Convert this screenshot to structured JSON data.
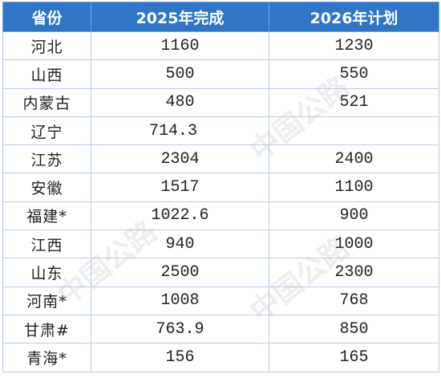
{
  "table": {
    "headers": [
      "省份",
      "2025年完成",
      "2026年计划"
    ],
    "rows": [
      {
        "province": "河北",
        "done2025": "1160",
        "plan2026": "1230"
      },
      {
        "province": "山西",
        "done2025": "500",
        "plan2026": "550"
      },
      {
        "province": "内蒙古",
        "done2025": "480",
        "plan2026": "521"
      },
      {
        "province": "辽宁",
        "done2025": "714.3",
        "plan2026": ""
      },
      {
        "province": "江苏",
        "done2025": "2304",
        "plan2026": "2400"
      },
      {
        "province": "安徽",
        "done2025": "1517",
        "plan2026": "1100"
      },
      {
        "province": "福建*",
        "done2025": "1022.6",
        "plan2026": "900"
      },
      {
        "province": "江西",
        "done2025": "940",
        "plan2026": "1000"
      },
      {
        "province": "山东",
        "done2025": "2500",
        "plan2026": "2300"
      },
      {
        "province": "河南*",
        "done2025": "1008",
        "plan2026": "768"
      },
      {
        "province": "甘肃#",
        "done2025": "763.9",
        "plan2026": "850"
      },
      {
        "province": "青海*",
        "done2025": "156",
        "plan2026": "165"
      }
    ]
  },
  "watermark": "中国公路",
  "colors": {
    "header_bg": "#2f76c9",
    "header_text": "#ffffff",
    "border": "#b9cde6"
  }
}
